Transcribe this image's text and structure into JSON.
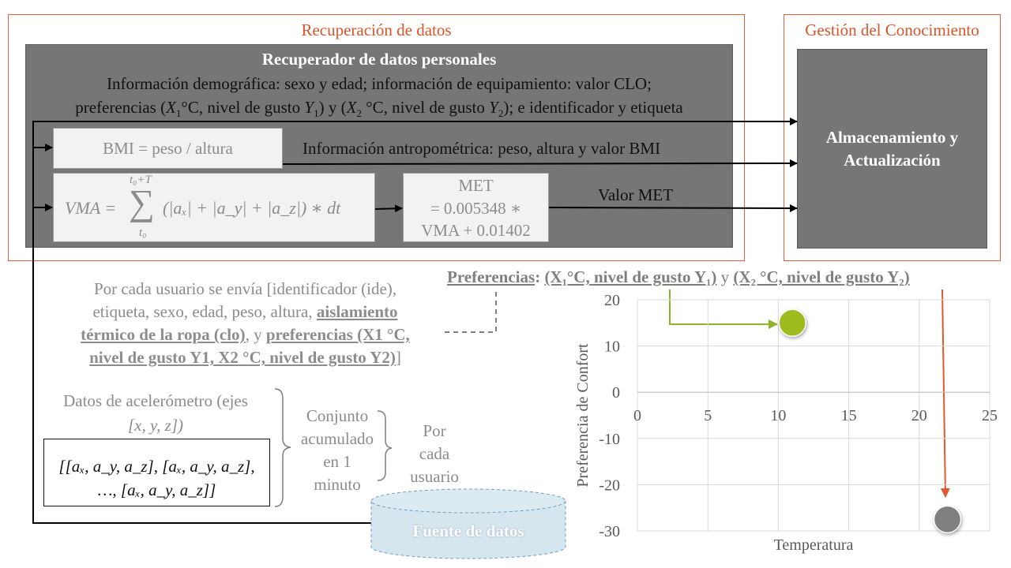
{
  "frames": {
    "recuperacion_title": "Recuperación de datos",
    "gestion_title": "Gestión del Conocimiento"
  },
  "recuperador": {
    "title": "Recuperador de datos personales",
    "line1": "Información demográfica: sexo y edad; información de equipamiento: valor CLO;",
    "line2_a": "preferencias (",
    "line2_x1": "X",
    "line2_x1_sub": "1",
    "line2_b": "°C, nivel de gusto ",
    "line2_y1": "Y",
    "line2_y1_sub": "1",
    "line2_c": ") y (",
    "line2_x2": "X",
    "line2_x2_sub": "2",
    "line2_d": " °C, nivel de gusto ",
    "line2_y2": "Y",
    "line2_y2_sub": "2",
    "line2_e": "); e identificador y etiqueta"
  },
  "bmi": {
    "formula": "BMI = peso / altura",
    "info": "Información antropométrica: peso, altura y valor BMI"
  },
  "vma": {
    "lhs": "VMA = ",
    "upper": "t₀+T",
    "lower": "t₀",
    "sigma": "∑",
    "rhs": "(|aₓ| + |a_y| + |a_z|) ∗ dt"
  },
  "met": {
    "line1": "MET",
    "line2": "= 0.005348 ∗",
    "line3": "VMA + 0.01402",
    "label": "Valor MET"
  },
  "almacenamiento": {
    "line1": "Almacenamiento y",
    "line2": "Actualización"
  },
  "envio": {
    "l1": "Por cada usuario se envía [identificador (ide),",
    "l2a": "etiqueta, sexo, edad, peso, altura, ",
    "l2b": "aislamiento",
    "l3a": "térmico de la ropa (clo)",
    "l3b": ", y ",
    "l3c": "preferencias (X1 °C,",
    "l4a": "nivel de gusto Y1, X2 °C, nivel de gusto Y2)",
    "l4b": "]"
  },
  "acel": {
    "l1": "Datos de acelerómetro (ejes",
    "l2": "[x, y, z])",
    "box_l1": "[[aₓ, a_y, a_z], [aₓ, a_y, a_z],",
    "box_l2": "…, [aₓ, a_y, a_z]]",
    "conjunto": [
      "Conjunto",
      "acumulado",
      "en 1",
      "minuto"
    ],
    "por_cada": [
      "Por",
      "cada",
      "usuario"
    ]
  },
  "fuente": {
    "label": "Fuente de datos"
  },
  "preferencias_header": {
    "label": "Preferencias",
    "colon": ": ",
    "p1": "(X₁°C, nivel de gusto Y₁)",
    "y": " y ",
    "p2": "(X₂ °C, nivel de gusto Y₂)"
  },
  "colors": {
    "frame": "#e0603a",
    "panel": "#767676",
    "green": "#9dbb1e",
    "green_arrow": "#8db42b",
    "orange_arrow": "#e05a2b",
    "gray_point": "#7f7f7f"
  },
  "chart_data": {
    "type": "scatter",
    "title": "",
    "xlabel": "Temperatura",
    "ylabel": "Preferencia de Confort",
    "xlim": [
      0,
      25
    ],
    "ylim": [
      -30,
      20
    ],
    "xticks": [
      0,
      5,
      10,
      15,
      20,
      25
    ],
    "yticks": [
      20,
      10,
      0,
      -10,
      -20,
      -30
    ],
    "grid": true,
    "points": [
      {
        "x": 11,
        "y": 15,
        "color": "#9dbb1e"
      },
      {
        "x": 22,
        "y": -27.5,
        "color": "#7f7f7f"
      }
    ]
  }
}
